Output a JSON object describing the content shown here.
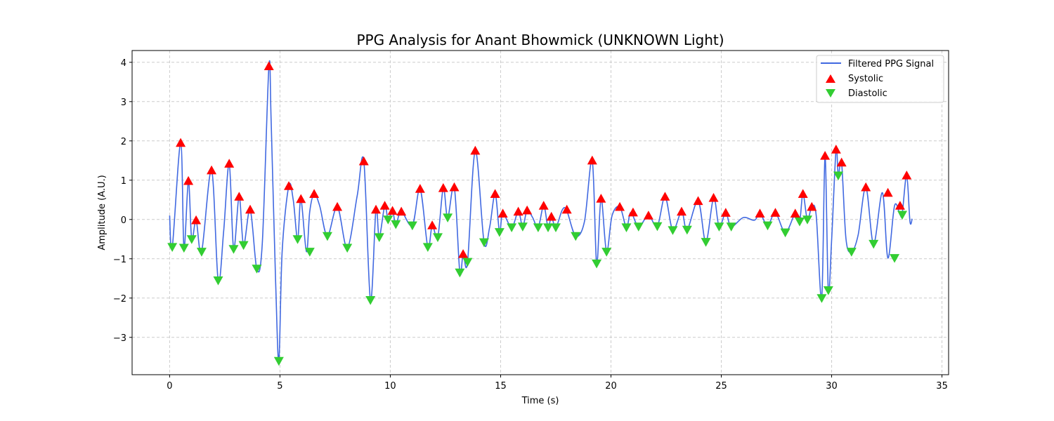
{
  "chart_data": {
    "type": "line",
    "title": "PPG Analysis for Anant Bhowmick (UNKNOWN Light)",
    "xlabel": "Time (s)",
    "ylabel": "Amplitude (A.U.)",
    "xlim": [
      -1.7,
      35.3
    ],
    "ylim": [
      -3.95,
      4.3
    ],
    "xticks": [
      0,
      5,
      10,
      15,
      20,
      25,
      30,
      35
    ],
    "xtick_labels": [
      "0",
      "5",
      "10",
      "15",
      "20",
      "25",
      "30",
      "35"
    ],
    "yticks": [
      -3,
      -2,
      -1,
      0,
      1,
      2,
      3,
      4
    ],
    "ytick_labels": [
      "−3",
      "−2",
      "−1",
      "0",
      "1",
      "2",
      "3",
      "4"
    ],
    "grid": true,
    "legend_position": "top-right",
    "colors": {
      "signal": "#4169e1",
      "systolic": "#ff0000",
      "diastolic": "#32cd32"
    },
    "series": [
      {
        "name": "Filtered PPG Signal",
        "kind": "line",
        "x": [
          0.0,
          0.12,
          0.5,
          0.65,
          0.85,
          1.0,
          1.2,
          1.45,
          1.9,
          2.2,
          2.45,
          2.7,
          2.9,
          3.15,
          3.35,
          3.65,
          3.95,
          4.2,
          4.5,
          4.6,
          4.8,
          4.95,
          5.1,
          5.4,
          5.6,
          5.8,
          5.95,
          6.2,
          6.35,
          6.55,
          6.8,
          7.15,
          7.6,
          8.05,
          8.5,
          8.8,
          9.1,
          9.35,
          9.5,
          9.75,
          9.9,
          10.1,
          10.25,
          10.5,
          11.0,
          11.35,
          11.7,
          11.9,
          12.15,
          12.4,
          12.6,
          12.9,
          13.15,
          13.3,
          13.5,
          13.85,
          14.25,
          14.5,
          14.75,
          14.95,
          15.1,
          15.5,
          15.8,
          16.0,
          16.2,
          16.45,
          16.7,
          16.95,
          17.15,
          17.3,
          17.5,
          17.8,
          18.0,
          18.4,
          18.8,
          19.15,
          19.35,
          19.55,
          19.8,
          20.05,
          20.4,
          20.7,
          20.9,
          21.25,
          21.7,
          22.1,
          22.45,
          22.8,
          23.2,
          23.45,
          23.95,
          24.3,
          24.65,
          24.9,
          25.2,
          25.45,
          26.0,
          26.5,
          26.75,
          27.1,
          27.45,
          27.9,
          28.35,
          28.55,
          28.7,
          28.9,
          29.1,
          29.3,
          29.55,
          29.7,
          29.85,
          30.0,
          30.2,
          30.3,
          30.45,
          30.65,
          30.9,
          31.2,
          31.55,
          31.9,
          32.3,
          32.55,
          32.85,
          33.1,
          33.2,
          33.4,
          33.55,
          33.65
        ],
        "y": [
          0.1,
          -0.7,
          1.95,
          -0.72,
          0.98,
          -0.5,
          -0.02,
          -0.82,
          1.25,
          -1.55,
          -0.3,
          1.42,
          -0.75,
          0.58,
          -0.65,
          0.25,
          -1.25,
          -0.6,
          3.9,
          2.5,
          -1.5,
          -3.6,
          -0.8,
          0.85,
          0.5,
          -0.5,
          0.52,
          -0.82,
          0.2,
          0.65,
          0.35,
          -0.42,
          0.32,
          -0.72,
          0.6,
          1.48,
          -2.05,
          0.25,
          -0.45,
          0.35,
          0.0,
          0.22,
          -0.12,
          0.2,
          -0.15,
          0.78,
          -0.7,
          -0.15,
          -0.45,
          0.8,
          0.05,
          0.82,
          -1.35,
          -0.88,
          -1.08,
          1.75,
          -0.58,
          -0.2,
          0.65,
          -0.32,
          0.15,
          -0.2,
          0.2,
          -0.18,
          0.23,
          0.05,
          -0.2,
          0.35,
          -0.2,
          0.07,
          -0.2,
          0.25,
          0.22,
          -0.42,
          -0.05,
          1.5,
          -1.12,
          0.53,
          -0.82,
          0.1,
          0.32,
          -0.2,
          0.18,
          -0.18,
          0.1,
          -0.17,
          0.58,
          -0.27,
          0.2,
          -0.26,
          0.47,
          -0.57,
          0.55,
          -0.18,
          0.17,
          -0.18,
          0.05,
          -0.02,
          0.15,
          -0.15,
          0.17,
          -0.33,
          0.15,
          -0.05,
          0.65,
          0.0,
          0.32,
          0.1,
          -2.0,
          1.62,
          -1.8,
          -0.5,
          1.78,
          1.12,
          1.45,
          -0.5,
          -0.82,
          -0.4,
          0.82,
          -0.62,
          0.68,
          -0.98,
          0.35,
          0.12,
          0.15,
          1.12,
          -0.05,
          0.02
        ]
      },
      {
        "name": "Systolic",
        "kind": "marker-up",
        "x": [
          0.5,
          0.85,
          1.2,
          1.9,
          2.7,
          3.15,
          3.65,
          4.5,
          5.4,
          5.95,
          6.55,
          7.6,
          8.8,
          9.35,
          9.75,
          10.1,
          10.5,
          11.35,
          11.9,
          12.4,
          12.9,
          13.3,
          13.85,
          14.75,
          15.1,
          15.8,
          16.2,
          16.95,
          17.3,
          18.0,
          19.15,
          19.55,
          20.4,
          21.0,
          21.7,
          22.45,
          23.2,
          23.95,
          24.65,
          25.2,
          26.75,
          27.45,
          28.35,
          28.7,
          29.1,
          29.7,
          30.2,
          30.45,
          31.55,
          32.55,
          33.1,
          33.4
        ],
        "y": [
          1.95,
          0.98,
          -0.02,
          1.25,
          1.42,
          0.58,
          0.25,
          3.9,
          0.85,
          0.52,
          0.65,
          0.32,
          1.48,
          0.25,
          0.35,
          0.22,
          0.2,
          0.78,
          -0.15,
          0.8,
          0.82,
          -0.88,
          1.75,
          0.65,
          0.15,
          0.2,
          0.23,
          0.35,
          0.07,
          0.25,
          1.5,
          0.53,
          0.32,
          0.18,
          0.1,
          0.58,
          0.2,
          0.47,
          0.55,
          0.17,
          0.15,
          0.17,
          0.15,
          0.65,
          0.32,
          1.62,
          1.78,
          1.45,
          0.82,
          0.68,
          0.35,
          1.12
        ]
      },
      {
        "name": "Diastolic",
        "kind": "marker-down",
        "x": [
          0.12,
          0.65,
          1.0,
          1.45,
          2.2,
          2.9,
          3.35,
          3.95,
          4.95,
          5.8,
          6.35,
          7.15,
          8.05,
          9.1,
          9.5,
          9.9,
          10.25,
          11.0,
          11.7,
          12.15,
          12.6,
          13.15,
          13.5,
          14.25,
          14.95,
          15.5,
          16.0,
          16.7,
          17.15,
          17.5,
          18.4,
          19.35,
          19.8,
          20.7,
          21.25,
          22.1,
          22.8,
          23.45,
          24.3,
          24.9,
          25.45,
          27.1,
          27.9,
          28.55,
          28.9,
          29.55,
          29.85,
          30.3,
          30.9,
          31.9,
          32.85,
          33.2
        ],
        "y": [
          -0.7,
          -0.72,
          -0.5,
          -0.82,
          -1.55,
          -0.75,
          -0.65,
          -1.25,
          -3.6,
          -0.5,
          -0.82,
          -0.42,
          -0.72,
          -2.05,
          -0.45,
          0.0,
          -0.12,
          -0.15,
          -0.7,
          -0.45,
          0.05,
          -1.35,
          -1.08,
          -0.58,
          -0.32,
          -0.2,
          -0.18,
          -0.2,
          -0.2,
          -0.2,
          -0.42,
          -1.12,
          -0.82,
          -0.2,
          -0.18,
          -0.17,
          -0.27,
          -0.26,
          -0.57,
          -0.18,
          -0.18,
          -0.15,
          -0.33,
          -0.05,
          0.0,
          -2.0,
          -1.8,
          1.12,
          -0.82,
          -0.62,
          -0.98,
          0.12
        ]
      }
    ]
  }
}
